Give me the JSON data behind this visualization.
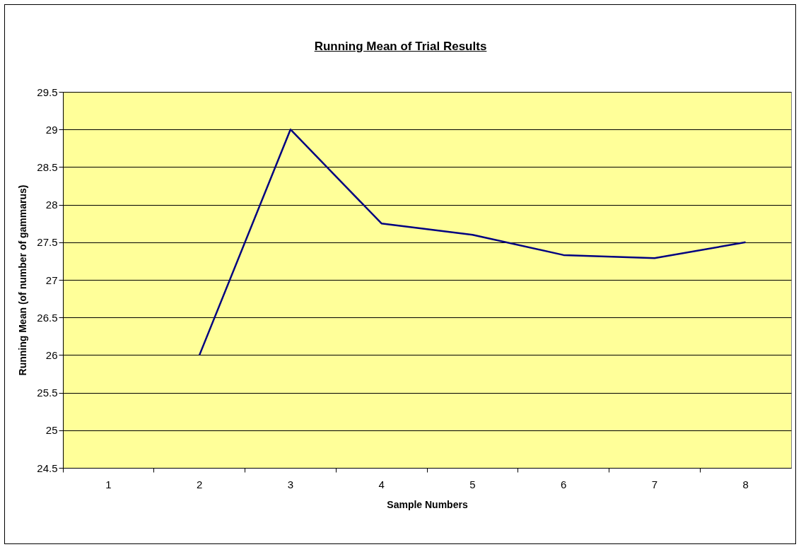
{
  "chart_data": {
    "type": "line",
    "title": "Running Mean of Trial Results",
    "xlabel": "Sample Numbers",
    "ylabel": "Running Mean (of number of gammarus)",
    "categories": [
      "1",
      "2",
      "3",
      "4",
      "5",
      "6",
      "7",
      "8"
    ],
    "series": [
      {
        "color": "#000080",
        "values": [
          null,
          26,
          29,
          27.75,
          27.6,
          27.33,
          27.29,
          27.5
        ]
      }
    ],
    "ylim": [
      24.5,
      29.5
    ],
    "yticks": [
      24.5,
      25,
      25.5,
      26,
      26.5,
      27,
      27.5,
      28,
      28.5,
      29,
      29.5
    ],
    "grid": "y",
    "marker": "none",
    "line_style": "solid"
  }
}
